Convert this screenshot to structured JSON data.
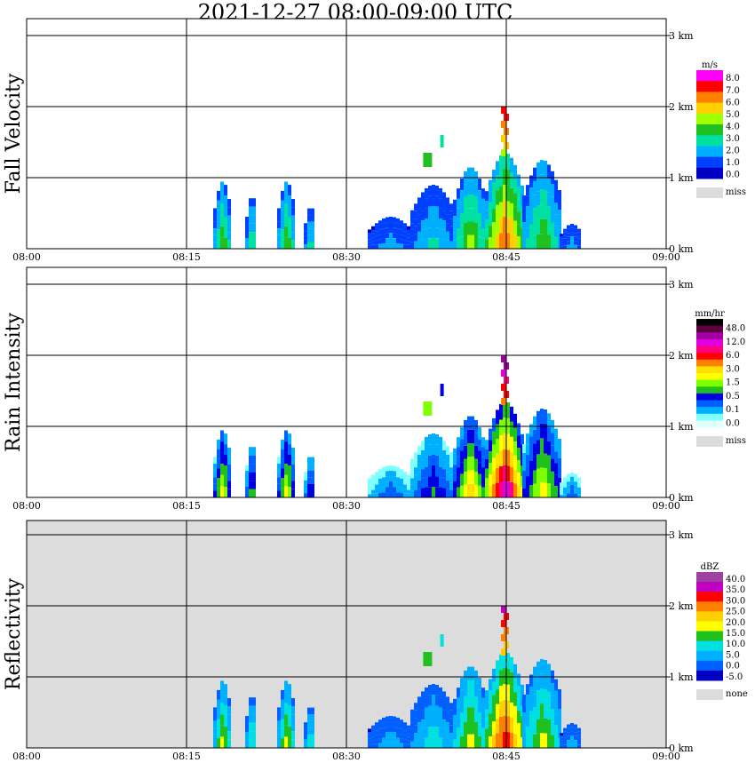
{
  "title": "2021-12-27   08:00-09:00 UTC",
  "x_ticks": [
    "08:00",
    "08:15",
    "08:30",
    "08:45",
    "09:00"
  ],
  "y_ticks": [
    "0 km",
    "1 km",
    "2 km",
    "3 km"
  ],
  "chart_data": [
    {
      "type": "heatmap",
      "ylabel": "Fall Velocity",
      "xlim": [
        "08:00",
        "09:00"
      ],
      "ylim_km": [
        0,
        3.2
      ],
      "grid": true,
      "background": "#ffffff",
      "colorbar": {
        "unit": "m/s",
        "labels": [
          "8.0",
          "7.0",
          "6.0",
          "5.0",
          "4.0",
          "3.0",
          "2.0",
          "1.0",
          "0.0"
        ],
        "colors": [
          "#ff00ff",
          "#ff0000",
          "#ff8000",
          "#ffd000",
          "#a0ff00",
          "#20c020",
          "#00e0a0",
          "#00b0ff",
          "#0040ff",
          "#0000c0"
        ],
        "miss_label": "miss",
        "miss_color": "#dcdcdc"
      }
    },
    {
      "type": "heatmap",
      "ylabel": "Rain Intensity",
      "xlim": [
        "08:00",
        "09:00"
      ],
      "ylim_km": [
        0,
        3.2
      ],
      "grid": true,
      "background": "#ffffff",
      "colorbar": {
        "unit": "mm/hr",
        "labels": [
          "48.0",
          "12.0",
          "6.0",
          "3.0",
          "1.5",
          "0.5",
          "0.1",
          "0.0"
        ],
        "colors": [
          "#000000",
          "#600040",
          "#a000a0",
          "#e000e0",
          "#ff0080",
          "#ff0000",
          "#ff8000",
          "#ffe000",
          "#ffff00",
          "#80ff00",
          "#20c020",
          "#0000e0",
          "#0060ff",
          "#00b0ff",
          "#80ffff",
          "#e0ffff"
        ],
        "miss_label": "miss",
        "miss_color": "#dcdcdc"
      }
    },
    {
      "type": "heatmap",
      "ylabel": "Reflectivity",
      "xlim": [
        "08:00",
        "09:00"
      ],
      "ylim_km": [
        0,
        3.2
      ],
      "grid": true,
      "background": "#dcdcdc",
      "colorbar": {
        "unit": "dBZ",
        "labels": [
          "40.0",
          "35.0",
          "30.0",
          "25.0",
          "20.0",
          "15.0",
          "10.0",
          "5.0",
          "0.0",
          "-5.0"
        ],
        "colors": [
          "#a040a0",
          "#c000c0",
          "#ff0000",
          "#ff8000",
          "#ffd000",
          "#ffff00",
          "#20c020",
          "#00e0e0",
          "#00b0ff",
          "#0060ff",
          "#0000c0"
        ],
        "miss_label": "none",
        "miss_color": "#dcdcdc"
      }
    }
  ]
}
